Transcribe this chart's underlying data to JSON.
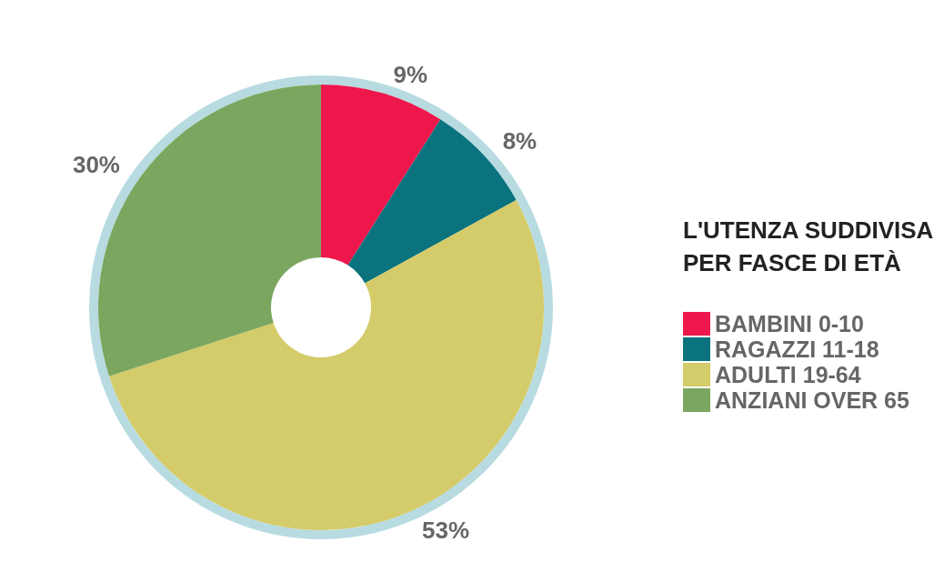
{
  "chart_data": {
    "type": "donut",
    "legend_title": "L'UTENZA SUDDIVISA\nPER FASCE DI ETÀ",
    "categories": [
      "BAMBINI 0-10",
      "RAGAZZI 11-18",
      "ADULTI 19-64",
      "ANZIANI OVER 65"
    ],
    "values": [
      9,
      8,
      53,
      30
    ],
    "colors": [
      "#ee174c",
      "#0a737e",
      "#d4cb6a",
      "#7ba65f"
    ],
    "value_labels": [
      "9%",
      "8%",
      "53%",
      "30%"
    ],
    "legend": "right"
  }
}
